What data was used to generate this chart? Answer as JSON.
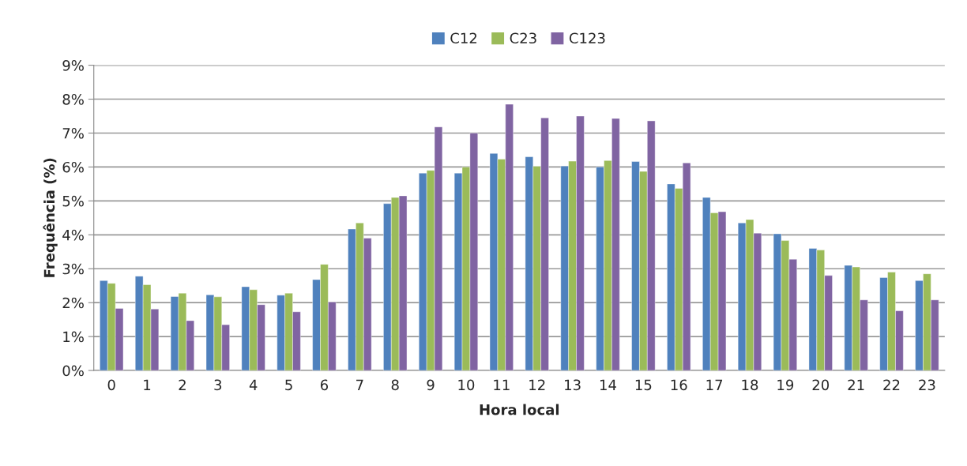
{
  "chart_data": {
    "type": "bar",
    "xlabel": "Hora local",
    "ylabel": "Frequência (%)",
    "categories": [
      "0",
      "1",
      "2",
      "3",
      "4",
      "5",
      "6",
      "7",
      "8",
      "9",
      "10",
      "11",
      "12",
      "13",
      "14",
      "15",
      "16",
      "17",
      "18",
      "19",
      "20",
      "21",
      "22",
      "23"
    ],
    "series": [
      {
        "name": "C12",
        "color": "#4f81bd",
        "values": [
          2.65,
          2.78,
          2.18,
          2.23,
          2.47,
          2.22,
          2.68,
          4.17,
          4.92,
          5.82,
          5.82,
          6.4,
          6.3,
          6.03,
          6.0,
          6.16,
          5.5,
          5.1,
          4.35,
          4.03,
          3.6,
          3.1,
          2.74,
          2.65
        ]
      },
      {
        "name": "C23",
        "color": "#9bbb59",
        "values": [
          2.57,
          2.53,
          2.28,
          2.17,
          2.38,
          2.28,
          3.13,
          4.35,
          5.1,
          5.9,
          6.0,
          6.23,
          6.02,
          6.17,
          6.19,
          5.87,
          5.37,
          4.65,
          4.45,
          3.83,
          3.55,
          3.05,
          2.9,
          2.85
        ]
      },
      {
        "name": "C123",
        "color": "#8064a2",
        "values": [
          1.83,
          1.81,
          1.47,
          1.35,
          1.94,
          1.73,
          2.02,
          3.9,
          5.15,
          7.18,
          7.0,
          7.85,
          7.45,
          7.5,
          7.43,
          7.36,
          6.12,
          4.68,
          4.05,
          3.28,
          2.8,
          2.08,
          1.76,
          2.08
        ]
      }
    ],
    "ylim": [
      0,
      9
    ],
    "yticks": [
      {
        "value": 0,
        "label": "0%"
      },
      {
        "value": 1,
        "label": "1%"
      },
      {
        "value": 2,
        "label": "2%"
      },
      {
        "value": 3,
        "label": "3%"
      },
      {
        "value": 4,
        "label": "4%"
      },
      {
        "value": 5,
        "label": "5%"
      },
      {
        "value": 6,
        "label": "6%"
      },
      {
        "value": 7,
        "label": "7%"
      },
      {
        "value": 8,
        "label": "8%"
      },
      {
        "value": 9,
        "label": "9%"
      }
    ],
    "grid": "y",
    "legend": "top"
  }
}
